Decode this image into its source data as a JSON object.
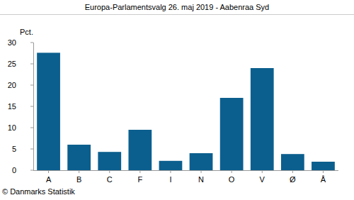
{
  "chart_data": {
    "type": "bar",
    "title": "Europa-Parlamentsvalg 26. maj 2019 - Aabenraa Syd",
    "y_label": "Pct.",
    "source": "© Danmarks Statistik",
    "categories": [
      "A",
      "B",
      "C",
      "F",
      "I",
      "N",
      "O",
      "V",
      "Ø",
      "Å"
    ],
    "values": [
      27.6,
      6.0,
      4.3,
      9.5,
      2.2,
      4.0,
      17.0,
      24.0,
      3.8,
      2.0
    ],
    "color": "#0b5f8e",
    "ylim": [
      0,
      30
    ],
    "yticks": [
      0,
      5,
      10,
      15,
      20,
      25,
      30
    ],
    "grid": false
  }
}
